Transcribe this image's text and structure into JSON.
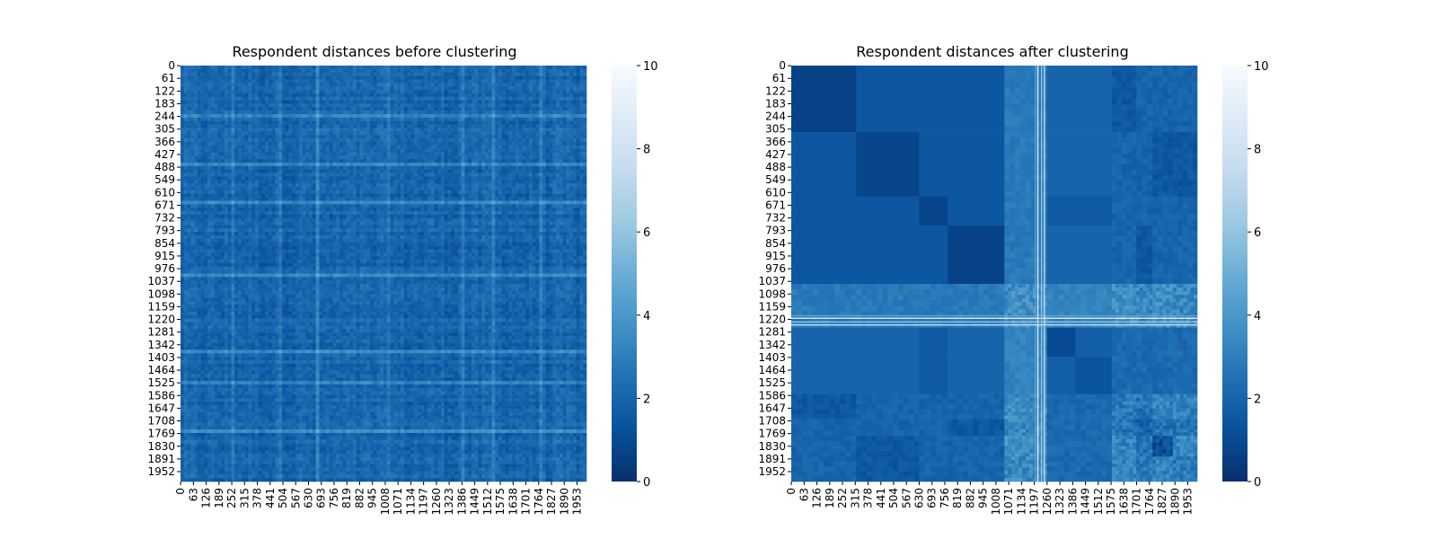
{
  "chart_data": [
    {
      "type": "heatmap",
      "title": "Respondent distances before clustering",
      "n": 2000,
      "row_tick_labels": [
        "0",
        "61",
        "122",
        "183",
        "244",
        "305",
        "366",
        "427",
        "488",
        "549",
        "610",
        "671",
        "732",
        "793",
        "854",
        "915",
        "976",
        "1037",
        "1098",
        "1159",
        "1220",
        "1281",
        "1342",
        "1403",
        "1464",
        "1525",
        "1586",
        "1647",
        "1708",
        "1769",
        "1830",
        "1891",
        "1952"
      ],
      "col_tick_labels": [
        "0",
        "63",
        "126",
        "189",
        "252",
        "315",
        "378",
        "441",
        "504",
        "567",
        "630",
        "693",
        "756",
        "819",
        "882",
        "945",
        "1008",
        "1071",
        "1134",
        "1197",
        "1260",
        "1323",
        "1386",
        "1449",
        "1512",
        "1575",
        "1638",
        "1701",
        "1764",
        "1827",
        "1890",
        "1953"
      ],
      "row_tick_step": 61,
      "col_tick_step": 63,
      "colorbar": {
        "min": 0,
        "max": 10,
        "ticks": [
          "0",
          "2",
          "4",
          "6",
          "8",
          "10"
        ]
      },
      "colormap": "Blues_r",
      "typical_value": 2.0,
      "light_bands": [
        0.12,
        0.24,
        0.33,
        0.5,
        0.69,
        0.76,
        0.88
      ]
    },
    {
      "type": "heatmap",
      "title": "Respondent distances after clustering",
      "n": 2000,
      "row_tick_labels": [
        "0",
        "61",
        "122",
        "183",
        "244",
        "305",
        "366",
        "427",
        "488",
        "549",
        "610",
        "671",
        "732",
        "793",
        "854",
        "915",
        "976",
        "1037",
        "1098",
        "1159",
        "1220",
        "1281",
        "1342",
        "1403",
        "1464",
        "1525",
        "1586",
        "1647",
        "1708",
        "1769",
        "1830",
        "1891",
        "1952"
      ],
      "col_tick_labels": [
        "0",
        "63",
        "126",
        "189",
        "252",
        "315",
        "378",
        "441",
        "504",
        "567",
        "630",
        "693",
        "756",
        "819",
        "882",
        "945",
        "1008",
        "1071",
        "1134",
        "1197",
        "1260",
        "1323",
        "1386",
        "1449",
        "1512",
        "1575",
        "1638",
        "1701",
        "1764",
        "1827",
        "1890",
        "1953"
      ],
      "row_tick_step": 61,
      "col_tick_step": 63,
      "colorbar": {
        "min": 0,
        "max": 10,
        "ticks": [
          "0",
          "2",
          "4",
          "6",
          "8",
          "10"
        ]
      },
      "colormap": "Blues_r",
      "cluster_boundaries": [
        0,
        320,
        630,
        770,
        1050,
        1260,
        1400,
        1580,
        1700,
        1780,
        1880,
        2000
      ],
      "cluster_values": [
        [
          0.7,
          1.5,
          1.5,
          1.5,
          2.8,
          2.0,
          2.0,
          1.5,
          2.0,
          2.0,
          2.0
        ],
        [
          1.5,
          0.8,
          1.5,
          1.5,
          2.8,
          2.0,
          2.0,
          2.0,
          2.0,
          1.5,
          1.5
        ],
        [
          1.5,
          1.5,
          0.8,
          1.5,
          2.8,
          1.6,
          1.6,
          2.0,
          2.0,
          2.0,
          2.0
        ],
        [
          1.5,
          1.5,
          1.5,
          0.7,
          2.8,
          2.0,
          2.0,
          2.0,
          1.5,
          2.0,
          2.0
        ],
        [
          2.8,
          2.8,
          2.8,
          2.8,
          3.6,
          3.2,
          3.2,
          3.6,
          3.4,
          3.6,
          3.4
        ],
        [
          2.0,
          2.0,
          1.6,
          2.0,
          3.2,
          1.0,
          1.8,
          2.2,
          2.2,
          2.2,
          2.2
        ],
        [
          2.0,
          2.0,
          1.6,
          2.0,
          3.2,
          1.8,
          1.4,
          2.2,
          2.2,
          2.2,
          2.2
        ],
        [
          1.5,
          2.0,
          2.0,
          2.0,
          3.6,
          2.2,
          2.2,
          2.8,
          2.6,
          3.2,
          3.2
        ],
        [
          2.0,
          2.0,
          2.0,
          1.5,
          3.4,
          2.2,
          2.2,
          2.6,
          2.0,
          2.6,
          2.6
        ],
        [
          2.0,
          1.5,
          2.0,
          2.0,
          3.6,
          2.2,
          2.2,
          3.2,
          2.6,
          1.2,
          3.2
        ],
        [
          2.0,
          1.5,
          2.0,
          2.0,
          3.4,
          2.2,
          2.2,
          3.2,
          2.6,
          3.2,
          2.8
        ]
      ],
      "outlier_band": [
        1200,
        1250
      ]
    }
  ]
}
